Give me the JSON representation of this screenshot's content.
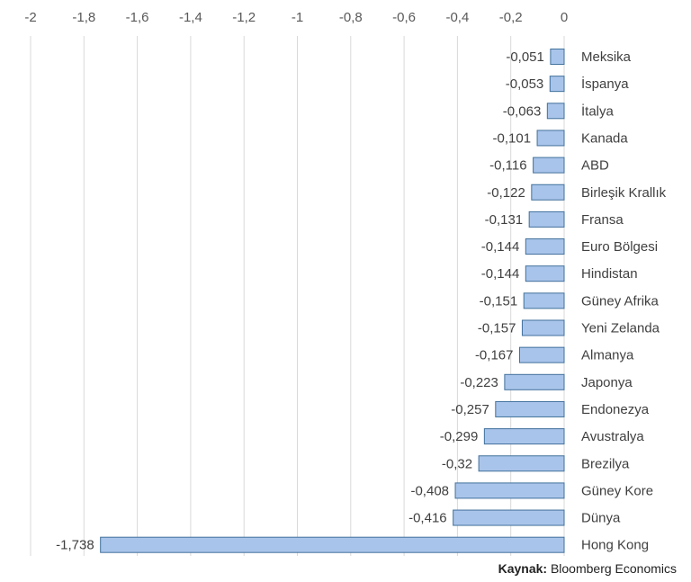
{
  "colors": {
    "bar_fill": "#a9c4ea",
    "bar_stroke": "#41719c",
    "grid": "#d9d9d9"
  },
  "source": {
    "label": "Kaynak:",
    "text": "Bloomberg Economics"
  },
  "chart_data": {
    "type": "bar",
    "orientation": "horizontal",
    "xlim": [
      -2,
      0
    ],
    "x_ticks": [
      -2,
      -1.8,
      -1.6,
      -1.4,
      -1.2,
      -1,
      -0.8,
      -0.6,
      -0.4,
      -0.2,
      0
    ],
    "x_tick_labels": [
      "-2",
      "-1,8",
      "-1,6",
      "-1,4",
      "-1,2",
      "-1",
      "-0,8",
      "-0,6",
      "-0,4",
      "-0,2",
      "0"
    ],
    "x_axis_position": "top",
    "grid": true,
    "categories": [
      "Meksika",
      "İspanya",
      "İtalya",
      "Kanada",
      "ABD",
      "Birleşik Krallık",
      "Fransa",
      "Euro Bölgesi",
      "Hindistan",
      "Güney Afrika",
      "Yeni Zelanda",
      "Almanya",
      "Japonya",
      "Endonezya",
      "Avustralya",
      "Brezilya",
      "Güney Kore",
      "Dünya",
      "Hong Kong"
    ],
    "values": [
      -0.051,
      -0.053,
      -0.063,
      -0.101,
      -0.116,
      -0.122,
      -0.131,
      -0.144,
      -0.144,
      -0.151,
      -0.157,
      -0.167,
      -0.223,
      -0.257,
      -0.299,
      -0.32,
      -0.408,
      -0.416,
      -1.738
    ],
    "value_labels": [
      "-0,051",
      "-0,053",
      "-0,063",
      "-0,101",
      "-0,116",
      "-0,122",
      "-0,131",
      "-0,144",
      "-0,144",
      "-0,151",
      "-0,157",
      "-0,167",
      "-0,223",
      "-0,257",
      "-0,299",
      "-0,32",
      "-0,408",
      "-0,416",
      "-1,738"
    ]
  }
}
